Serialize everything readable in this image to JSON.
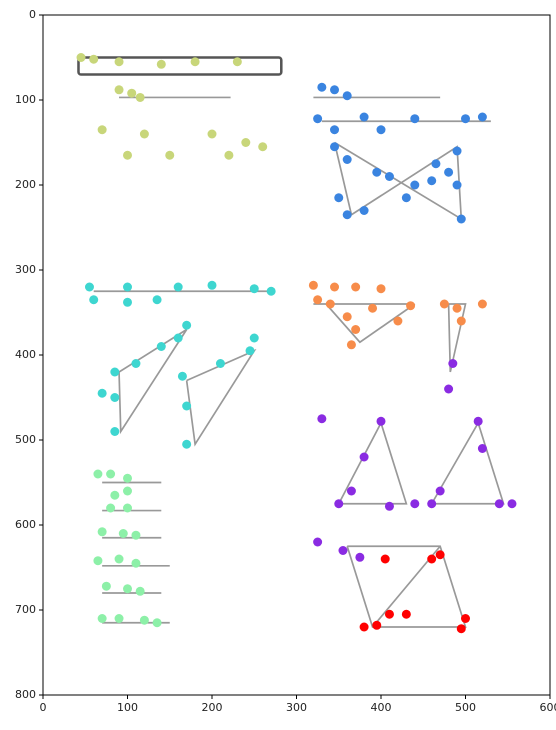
{
  "chart_data": {
    "type": "scatter",
    "xlim": [
      0,
      600
    ],
    "ylim": [
      800,
      0
    ],
    "xticks": [
      0,
      100,
      200,
      300,
      400,
      500,
      600
    ],
    "yticks": [
      0,
      100,
      200,
      300,
      400,
      500,
      600,
      700,
      800
    ],
    "series": [
      {
        "color": "#c8d67a",
        "x": [
          45,
          60,
          90,
          140,
          180,
          230,
          90,
          105,
          115,
          70,
          120,
          200,
          260,
          100,
          150,
          220,
          240
        ],
        "y": [
          50,
          52,
          55,
          58,
          55,
          55,
          88,
          92,
          97,
          135,
          140,
          140,
          155,
          165,
          165,
          165,
          150
        ]
      },
      {
        "color": "#3a84e0",
        "x": [
          330,
          345,
          360,
          325,
          380,
          440,
          500,
          520,
          345,
          400,
          345,
          360,
          395,
          410,
          440,
          460,
          480,
          490,
          465,
          490,
          360,
          380,
          495,
          430,
          350
        ],
        "y": [
          85,
          88,
          95,
          122,
          120,
          122,
          122,
          120,
          135,
          135,
          155,
          170,
          185,
          190,
          200,
          195,
          185,
          160,
          175,
          200,
          235,
          230,
          240,
          215,
          215
        ]
      },
      {
        "color": "#3ed6d0",
        "x": [
          55,
          100,
          160,
          200,
          250,
          270,
          60,
          100,
          135,
          170,
          160,
          140,
          110,
          85,
          70,
          85,
          85,
          165,
          170,
          170,
          210,
          250,
          245
        ],
        "y": [
          320,
          320,
          320,
          318,
          322,
          325,
          335,
          338,
          335,
          365,
          380,
          390,
          410,
          420,
          445,
          450,
          490,
          425,
          460,
          505,
          410,
          380,
          395
        ]
      },
      {
        "color": "#f78c4a",
        "x": [
          320,
          345,
          370,
          400,
          325,
          340,
          360,
          370,
          365,
          390,
          420,
          435,
          475,
          490,
          520,
          495
        ],
        "y": [
          318,
          320,
          320,
          322,
          335,
          340,
          355,
          370,
          388,
          345,
          360,
          342,
          340,
          345,
          340,
          360
        ]
      },
      {
        "color": "#8a2be2",
        "x": [
          330,
          400,
          380,
          365,
          350,
          410,
          440,
          515,
          520,
          470,
          460,
          540,
          555,
          325,
          355,
          375,
          485,
          480
        ],
        "y": [
          475,
          478,
          520,
          560,
          575,
          578,
          575,
          478,
          510,
          560,
          575,
          575,
          575,
          620,
          630,
          638,
          410,
          440
        ]
      },
      {
        "color": "#ff0000",
        "x": [
          380,
          395,
          410,
          430,
          470,
          405,
          500,
          495,
          460
        ],
        "y": [
          720,
          718,
          705,
          705,
          635,
          640,
          710,
          722,
          640
        ]
      },
      {
        "color": "#8df0a8",
        "x": [
          65,
          80,
          100,
          85,
          100,
          80,
          100,
          70,
          95,
          110,
          65,
          90,
          110,
          75,
          100,
          115,
          70,
          90,
          120,
          135
        ],
        "y": [
          540,
          540,
          545,
          565,
          560,
          580,
          580,
          608,
          610,
          612,
          642,
          640,
          645,
          672,
          675,
          678,
          710,
          710,
          712,
          715
        ]
      }
    ]
  }
}
